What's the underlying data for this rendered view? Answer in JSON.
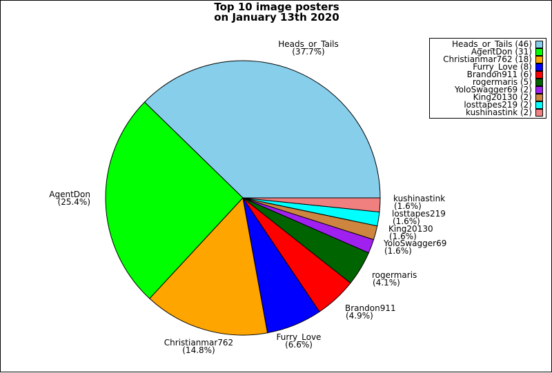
{
  "chart_data": {
    "type": "pie",
    "title_line1": "Top 10 image posters",
    "title_line2": "on January 13th 2020",
    "slices": [
      {
        "name": "Heads_or_Tails",
        "value": 46,
        "pct": "(37.7%)",
        "color": "#87ceeb",
        "legend": "Heads_or_Tails (46)"
      },
      {
        "name": "AgentDon",
        "value": 31,
        "pct": "(25.4%)",
        "color": "#00ff00",
        "legend": "AgentDon (31)"
      },
      {
        "name": "Christianmar762",
        "value": 18,
        "pct": "(14.8%)",
        "color": "#ffa500",
        "legend": "Christianmar762 (18)"
      },
      {
        "name": "Furry_Love",
        "value": 8,
        "pct": "(6.6%)",
        "color": "#0000ff",
        "legend": "Furry_Love (8)"
      },
      {
        "name": "Brandon911",
        "value": 6,
        "pct": "(4.9%)",
        "color": "#ff0000",
        "legend": "Brandon911 (6)"
      },
      {
        "name": "rogermaris",
        "value": 5,
        "pct": "(4.1%)",
        "color": "#006400",
        "legend": "rogermaris (5)"
      },
      {
        "name": "YoloSwagger69",
        "value": 2,
        "pct": "(1.6%)",
        "color": "#a020f0",
        "legend": "YoloSwagger69 (2)"
      },
      {
        "name": "King20130",
        "value": 2,
        "pct": "(1.6%)",
        "color": "#cd853f",
        "legend": "King20130 (2)"
      },
      {
        "name": "losttapes219",
        "value": 2,
        "pct": "(1.6%)",
        "color": "#00ffff",
        "legend": "losttapes219 (2)"
      },
      {
        "name": "kushinastink",
        "value": 2,
        "pct": "(1.6%)",
        "color": "#f08080",
        "legend": "kushinastink (2)"
      }
    ],
    "legend_position": "top-right"
  }
}
